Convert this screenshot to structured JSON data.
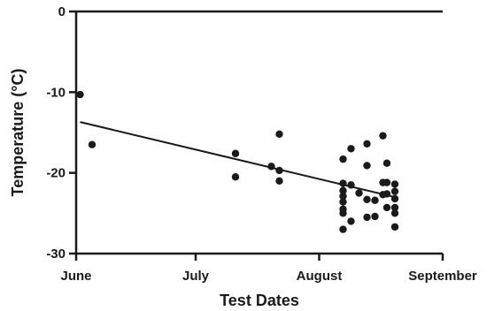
{
  "chart_data": {
    "type": "scatter",
    "title": "",
    "xlabel": "Test Dates",
    "ylabel": "Temperature (°C)",
    "x_ticks": [
      "June",
      "July",
      "August",
      "September"
    ],
    "y_ticks": [
      0,
      -10,
      -20,
      -30
    ],
    "xlim": [
      "2000-06-01",
      "2000-09-01"
    ],
    "ylim": [
      -30,
      0
    ],
    "grid": false,
    "legend": "none",
    "series": [
      {
        "points": [
          {
            "x": "2000-06-02",
            "y": -10.3
          },
          {
            "x": "2000-06-05",
            "y": -16.5
          },
          {
            "x": "2000-07-11",
            "y": -17.6
          },
          {
            "x": "2000-07-11",
            "y": -20.5
          },
          {
            "x": "2000-07-20",
            "y": -19.2
          },
          {
            "x": "2000-07-22",
            "y": -15.2
          },
          {
            "x": "2000-07-22",
            "y": -19.7
          },
          {
            "x": "2000-07-22",
            "y": -21.0
          },
          {
            "x": "2000-08-07",
            "y": -18.3
          },
          {
            "x": "2000-08-07",
            "y": -21.3
          },
          {
            "x": "2000-08-07",
            "y": -22.2
          },
          {
            "x": "2000-08-07",
            "y": -22.9
          },
          {
            "x": "2000-08-07",
            "y": -23.6
          },
          {
            "x": "2000-08-07",
            "y": -24.5
          },
          {
            "x": "2000-08-07",
            "y": -25.0
          },
          {
            "x": "2000-08-07",
            "y": -27.0
          },
          {
            "x": "2000-08-09",
            "y": -17.0
          },
          {
            "x": "2000-08-09",
            "y": -21.5
          },
          {
            "x": "2000-08-09",
            "y": -26.0
          },
          {
            "x": "2000-08-11",
            "y": -22.5
          },
          {
            "x": "2000-08-13",
            "y": -16.4
          },
          {
            "x": "2000-08-13",
            "y": -19.1
          },
          {
            "x": "2000-08-13",
            "y": -23.3
          },
          {
            "x": "2000-08-13",
            "y": -25.5
          },
          {
            "x": "2000-08-15",
            "y": -23.4
          },
          {
            "x": "2000-08-15",
            "y": -25.4
          },
          {
            "x": "2000-08-17",
            "y": -15.4
          },
          {
            "x": "2000-08-17",
            "y": -21.2
          },
          {
            "x": "2000-08-17",
            "y": -22.7
          },
          {
            "x": "2000-08-18",
            "y": -18.8
          },
          {
            "x": "2000-08-18",
            "y": -21.2
          },
          {
            "x": "2000-08-18",
            "y": -22.6
          },
          {
            "x": "2000-08-18",
            "y": -24.3
          },
          {
            "x": "2000-08-20",
            "y": -21.4
          },
          {
            "x": "2000-08-20",
            "y": -22.3
          },
          {
            "x": "2000-08-20",
            "y": -23.2
          },
          {
            "x": "2000-08-20",
            "y": -24.3
          },
          {
            "x": "2000-08-20",
            "y": -25.0
          },
          {
            "x": "2000-08-20",
            "y": -26.7
          }
        ]
      }
    ],
    "trendline": {
      "from": {
        "x": "2000-06-02",
        "y": -13.7
      },
      "to": {
        "x": "2000-08-20",
        "y": -23.0
      }
    },
    "colors": {
      "points": "#1a1a1a",
      "axes": "#1a1a1a",
      "trendline": "#1a1a1a"
    }
  }
}
